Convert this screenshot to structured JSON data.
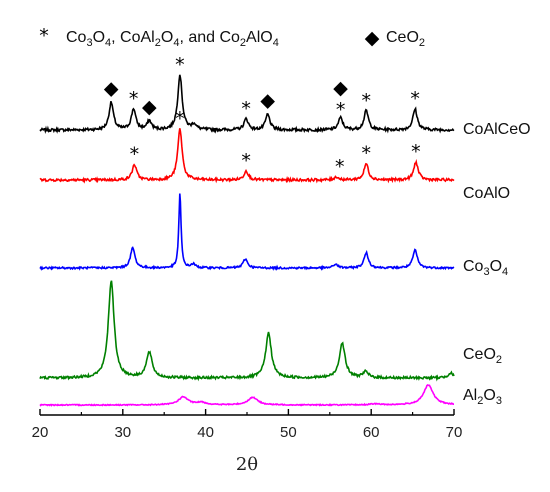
{
  "chart_data": {
    "type": "line",
    "xlabel": "2θ",
    "xlim": [
      20,
      70
    ],
    "x_ticks": [
      20,
      30,
      40,
      50,
      60,
      70
    ],
    "ylabel": "",
    "y_ticks_shown": false,
    "legend": [
      {
        "symbol": "*",
        "label": "Co3O4, CoAl2O4, and Co2AlO4"
      },
      {
        "symbol": "◆",
        "label": "CeO2"
      }
    ],
    "legend_position": "top",
    "series": [
      {
        "name": "CoAlCeO",
        "label_parts": [
          [
            "CoAlCeO",
            false
          ]
        ],
        "color": "#000000",
        "peaks": [
          {
            "x": 28.6,
            "height": 0.5
          },
          {
            "x": 31.3,
            "height": 0.38
          },
          {
            "x": 33.2,
            "height": 0.16
          },
          {
            "x": 36.9,
            "height": 1.0
          },
          {
            "x": 38.6,
            "height": 0.1
          },
          {
            "x": 44.9,
            "height": 0.2
          },
          {
            "x": 47.5,
            "height": 0.28
          },
          {
            "x": 56.3,
            "height": 0.22
          },
          {
            "x": 59.4,
            "height": 0.35
          },
          {
            "x": 65.3,
            "height": 0.38
          }
        ],
        "markers": [
          {
            "x": 28.6,
            "symbol": "◆"
          },
          {
            "x": 31.3,
            "symbol": "*"
          },
          {
            "x": 33.2,
            "symbol": "◆"
          },
          {
            "x": 36.9,
            "symbol": "*"
          },
          {
            "x": 44.9,
            "symbol": "*"
          },
          {
            "x": 47.5,
            "symbol": "◆"
          },
          {
            "x": 56.3,
            "symbol": "◆*"
          },
          {
            "x": 59.4,
            "symbol": "*"
          },
          {
            "x": 65.3,
            "symbol": "*"
          }
        ]
      },
      {
        "name": "CoAlO",
        "label_parts": [
          [
            "CoAlO",
            false
          ]
        ],
        "color": "#ff0000",
        "peaks": [
          {
            "x": 31.4,
            "height": 0.3
          },
          {
            "x": 36.9,
            "height": 1.0
          },
          {
            "x": 44.9,
            "height": 0.18
          },
          {
            "x": 55.8,
            "height": 0.06
          },
          {
            "x": 59.4,
            "height": 0.32
          },
          {
            "x": 65.4,
            "height": 0.35
          }
        ],
        "markers": [
          {
            "x": 31.4,
            "symbol": "*"
          },
          {
            "x": 36.9,
            "symbol": "*"
          },
          {
            "x": 44.9,
            "symbol": "*"
          },
          {
            "x": 56.2,
            "symbol": "*"
          },
          {
            "x": 59.4,
            "symbol": "*"
          },
          {
            "x": 65.4,
            "symbol": "*"
          }
        ]
      },
      {
        "name": "Co3O4",
        "label_parts": [
          [
            "Co",
            false
          ],
          [
            "3",
            true
          ],
          [
            "O",
            false
          ],
          [
            "4",
            true
          ]
        ],
        "color": "#0000ff",
        "peaks": [
          {
            "x": 31.2,
            "height": 0.27
          },
          {
            "x": 36.9,
            "height": 1.0
          },
          {
            "x": 38.5,
            "height": 0.05
          },
          {
            "x": 44.8,
            "height": 0.12
          },
          {
            "x": 55.7,
            "height": 0.05
          },
          {
            "x": 59.4,
            "height": 0.2
          },
          {
            "x": 65.3,
            "height": 0.24
          }
        ],
        "markers": []
      },
      {
        "name": "CeO2",
        "label_parts": [
          [
            "CeO",
            false
          ],
          [
            "2",
            true
          ]
        ],
        "color": "#008000",
        "peaks": [
          {
            "x": 28.6,
            "height": 1.0
          },
          {
            "x": 33.2,
            "height": 0.26
          },
          {
            "x": 47.6,
            "height": 0.46
          },
          {
            "x": 56.5,
            "height": 0.36
          },
          {
            "x": 59.3,
            "height": 0.06
          },
          {
            "x": 69.6,
            "height": 0.05
          }
        ],
        "markers": []
      },
      {
        "name": "Al2O3",
        "label_parts": [
          [
            "Al",
            false
          ],
          [
            "2",
            true
          ],
          [
            "O",
            false
          ],
          [
            "3",
            true
          ]
        ],
        "color": "#ff00ff",
        "peaks": [
          {
            "x": 37.3,
            "height": 0.4
          },
          {
            "x": 39.5,
            "height": 0.12
          },
          {
            "x": 45.7,
            "height": 0.38
          },
          {
            "x": 60.5,
            "height": 0.05
          },
          {
            "x": 66.9,
            "height": 1.0
          }
        ],
        "markers": []
      }
    ]
  }
}
